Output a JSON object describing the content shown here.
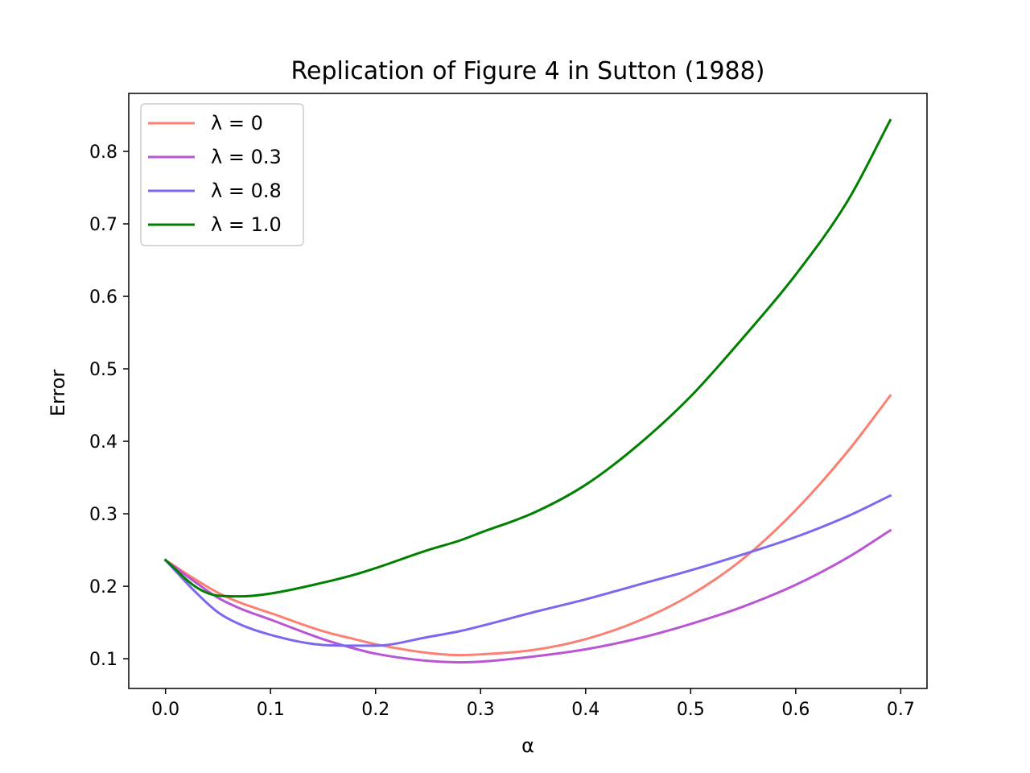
{
  "chart_data": {
    "type": "line",
    "title": "Replication of Figure 4 in Sutton (1988)",
    "xlabel": "α",
    "ylabel": "Error",
    "xlim": [
      -0.035,
      0.725
    ],
    "ylim": [
      0.059,
      0.88
    ],
    "xticks": [
      0.0,
      0.1,
      0.2,
      0.3,
      0.4,
      0.5,
      0.6,
      0.7
    ],
    "xtick_labels": [
      "0.0",
      "0.1",
      "0.2",
      "0.3",
      "0.4",
      "0.5",
      "0.6",
      "0.7"
    ],
    "yticks": [
      0.1,
      0.2,
      0.3,
      0.4,
      0.5,
      0.6,
      0.7,
      0.8
    ],
    "ytick_labels": [
      "0.1",
      "0.2",
      "0.3",
      "0.4",
      "0.5",
      "0.6",
      "0.7",
      "0.8"
    ],
    "grid": false,
    "legend": "top-left",
    "x": [
      0.0,
      0.03,
      0.05,
      0.07,
      0.1,
      0.15,
      0.18,
      0.2,
      0.25,
      0.28,
      0.3,
      0.35,
      0.4,
      0.45,
      0.5,
      0.55,
      0.6,
      0.65,
      0.69
    ],
    "series": [
      {
        "name": "λ = 0",
        "color": "#fa8072",
        "values": [
          0.236,
          0.208,
          0.191,
          0.178,
          0.163,
          0.138,
          0.127,
          0.12,
          0.108,
          0.105,
          0.106,
          0.112,
          0.127,
          0.152,
          0.188,
          0.238,
          0.305,
          0.387,
          0.463
        ]
      },
      {
        "name": "λ = 0.3",
        "color": "#ba55d3",
        "values": [
          0.236,
          0.204,
          0.184,
          0.17,
          0.154,
          0.127,
          0.114,
          0.107,
          0.097,
          0.095,
          0.096,
          0.103,
          0.113,
          0.128,
          0.148,
          0.172,
          0.202,
          0.24,
          0.277
        ]
      },
      {
        "name": "λ = 0.8",
        "color": "#7b68ee",
        "values": [
          0.236,
          0.19,
          0.164,
          0.148,
          0.133,
          0.119,
          0.118,
          0.118,
          0.13,
          0.138,
          0.145,
          0.164,
          0.182,
          0.202,
          0.222,
          0.244,
          0.268,
          0.297,
          0.325
        ]
      },
      {
        "name": "λ = 1.0",
        "color": "#008000",
        "values": [
          0.236,
          0.198,
          0.187,
          0.186,
          0.19,
          0.205,
          0.216,
          0.225,
          0.25,
          0.263,
          0.274,
          0.301,
          0.34,
          0.395,
          0.462,
          0.543,
          0.63,
          0.733,
          0.843
        ]
      }
    ]
  }
}
